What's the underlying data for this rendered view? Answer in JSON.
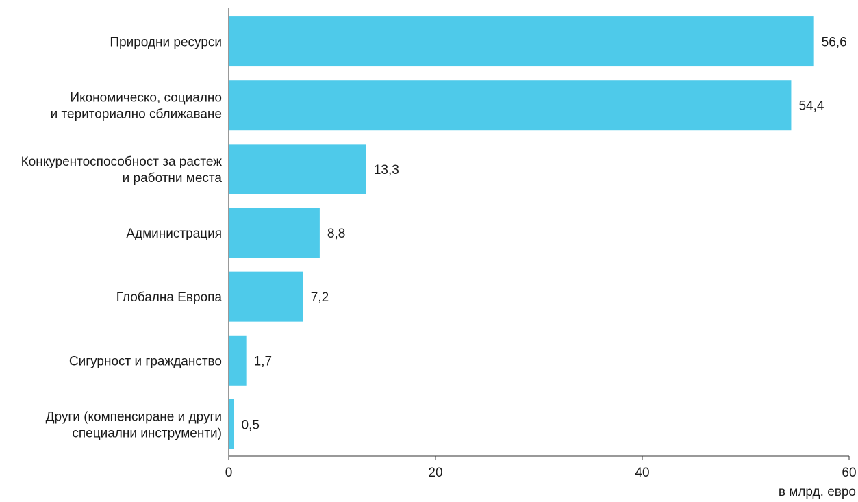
{
  "chart_data": {
    "type": "bar",
    "orientation": "horizontal",
    "title": "",
    "xlabel": "в млрд. евро",
    "ylabel": "",
    "categories": [
      [
        "Природни ресурси"
      ],
      [
        "Икономическо, социално",
        "и териториално сближаване"
      ],
      [
        "Конкурентоспособност за растеж",
        "и работни места"
      ],
      [
        "Администрация"
      ],
      [
        "Глобална Европа"
      ],
      [
        "Сигурност и гражданство"
      ],
      [
        "Други (компенсиране и други",
        "специални инструменти)"
      ]
    ],
    "values": [
      56.6,
      54.4,
      13.3,
      8.8,
      7.2,
      1.7,
      0.5
    ],
    "value_labels": [
      "56,6",
      "54,4",
      "13,3",
      "8,8",
      "7,2",
      "1,7",
      "0,5"
    ],
    "xlim": [
      0,
      60
    ],
    "xticks": [
      0,
      20,
      40,
      60
    ],
    "xtick_labels": [
      "0",
      "20",
      "40",
      "60"
    ],
    "grid": false,
    "legend": "none",
    "bar_color": "#4ecaea",
    "axis_color": "#333333"
  }
}
